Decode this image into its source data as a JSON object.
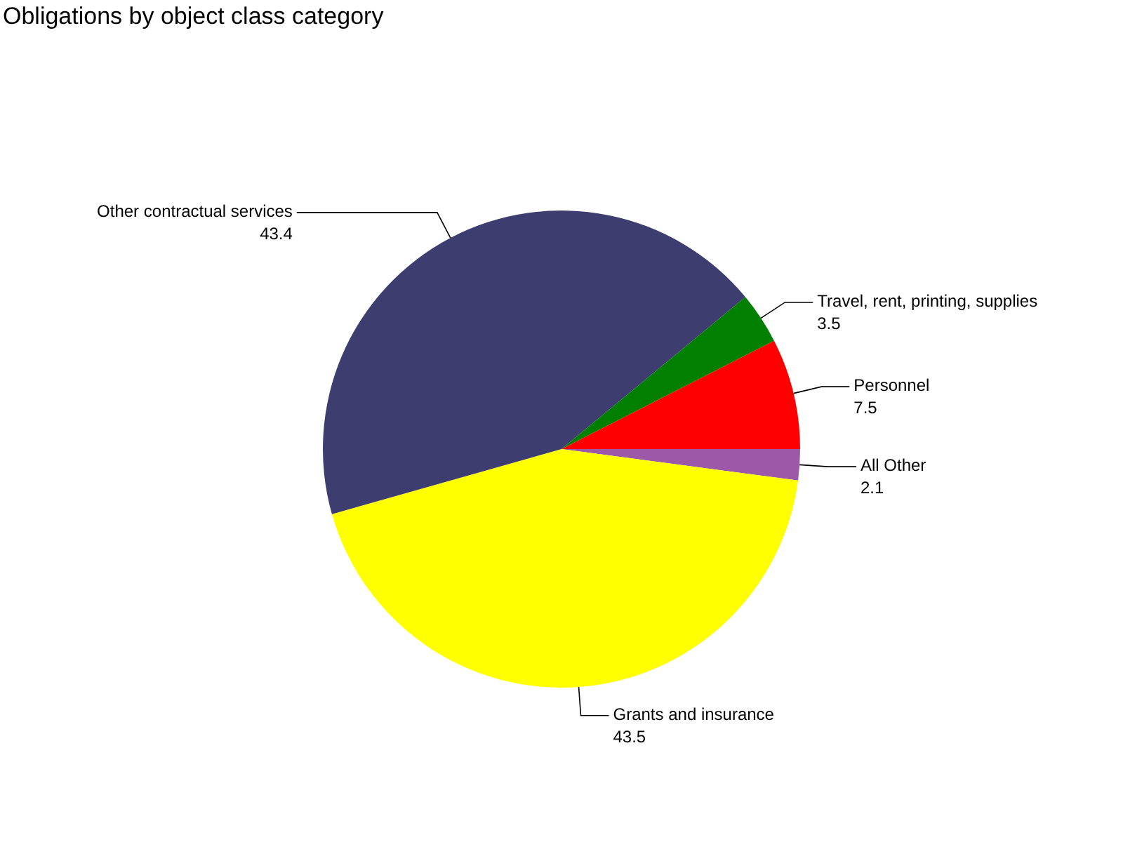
{
  "chart_data": {
    "type": "pie",
    "title": "Obligations by object class category",
    "categories": [
      "All Other",
      "Grants and insurance",
      "Other contractual services",
      "Travel, rent, printing, supplies",
      "Personnel"
    ],
    "values": [
      2.1,
      43.5,
      43.4,
      3.5,
      7.5
    ],
    "colors": [
      "#9b59a8",
      "#ffff00",
      "#3d3d6f",
      "#007f00",
      "#ff0000"
    ],
    "data_labels": true
  }
}
